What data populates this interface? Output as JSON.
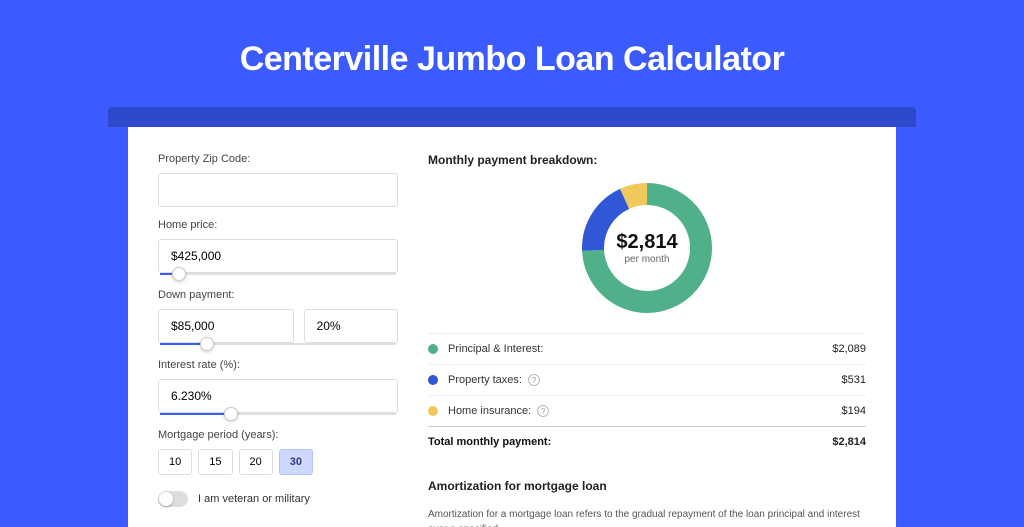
{
  "title": "Centerville Jumbo Loan Calculator",
  "colors": {
    "page_bg": "#3b5bff",
    "strip_bg": "#2f49cc",
    "card_bg": "#ffffff",
    "slider_fill": "#3b5bff",
    "period_active_bg": "#cfd8ff"
  },
  "form": {
    "zip": {
      "label": "Property Zip Code:",
      "value": ""
    },
    "price": {
      "label": "Home price:",
      "value": "$425,000",
      "slider_pct": 8
    },
    "down": {
      "label": "Down payment:",
      "amount": "$85,000",
      "pct": "20%",
      "slider_pct": 20
    },
    "rate": {
      "label": "Interest rate (%):",
      "value": "6.230%",
      "slider_pct": 30
    },
    "period": {
      "label": "Mortgage period (years):",
      "options": [
        "10",
        "15",
        "20",
        "30"
      ],
      "active_index": 3
    },
    "veteran": {
      "label": "I am veteran or military",
      "on": false
    }
  },
  "breakdown": {
    "title": "Monthly payment breakdown:",
    "center_amount": "$2,814",
    "center_sub": "per month",
    "donut": {
      "type": "donut",
      "radius": 54,
      "stroke_width": 22,
      "slices": [
        {
          "key": "pi",
          "value": 2089,
          "color": "#4fb08a"
        },
        {
          "key": "tax",
          "value": 531,
          "color": "#3156d6"
        },
        {
          "key": "ins",
          "value": 194,
          "color": "#f0c95a"
        }
      ]
    },
    "items": [
      {
        "label": "Principal & Interest:",
        "value": "$2,089",
        "color": "#4fb08a",
        "info": false
      },
      {
        "label": "Property taxes:",
        "value": "$531",
        "color": "#3156d6",
        "info": true
      },
      {
        "label": "Home insurance:",
        "value": "$194",
        "color": "#f0c95a",
        "info": true
      }
    ],
    "total": {
      "label": "Total monthly payment:",
      "value": "$2,814"
    }
  },
  "amortization": {
    "title": "Amortization for mortgage loan",
    "text": "Amortization for a mortgage loan refers to the gradual repayment of the loan principal and interest over a specified"
  }
}
